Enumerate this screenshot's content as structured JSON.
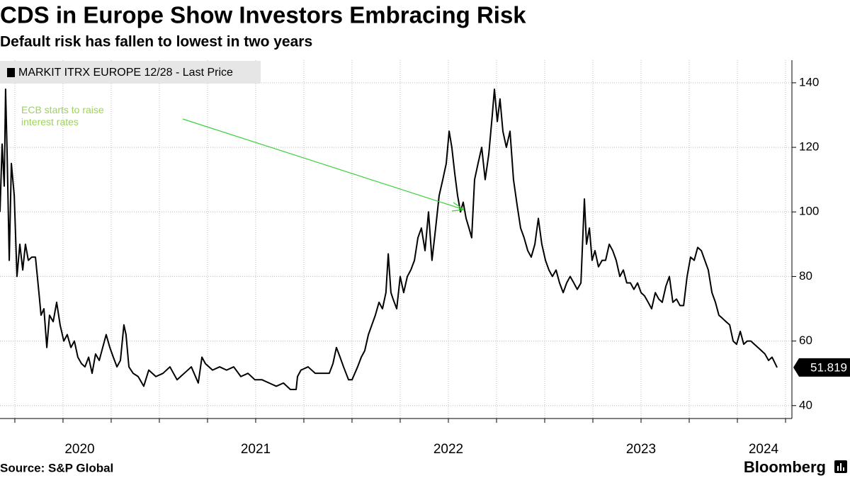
{
  "chart_data": {
    "type": "line",
    "title": "CDS in Europe Show Investors Embracing Risk",
    "subtitle": "Default risk has fallen to lowest in two years",
    "source": "Source: S&P Global",
    "brand": "Bloomberg",
    "annotation": "ECB starts to raise interest rates",
    "xlim": [
      2020.173,
      2024.272
    ],
    "xticks": [
      {
        "value": 2020,
        "label": "2020"
      },
      {
        "value": 2021,
        "label": "2021"
      },
      {
        "value": 2022,
        "label": "2022"
      },
      {
        "value": 2023,
        "label": "2023"
      },
      {
        "value": 2024,
        "label": "2024"
      }
    ],
    "xgrid": [
      2020.25,
      2020.5,
      2020.75,
      2021,
      2021.25,
      2021.5,
      2021.75,
      2022,
      2022.25,
      2022.5,
      2022.75,
      2023,
      2023.25,
      2023.5,
      2023.75,
      2024,
      2024.25
    ],
    "ylim": [
      36,
      147
    ],
    "yticks": [
      40,
      60,
      80,
      100,
      120,
      140
    ],
    "grid": true,
    "legend": "top-left",
    "x": [
      2020.173,
      2020.184,
      2020.195,
      2020.202,
      2020.21,
      2020.221,
      2020.232,
      2020.247,
      2020.261,
      2020.276,
      2020.291,
      2020.305,
      2020.32,
      2020.338,
      2020.357,
      2020.375,
      2020.386,
      2020.401,
      2020.416,
      2020.43,
      2020.449,
      2020.467,
      2020.485,
      2020.504,
      2020.522,
      2020.541,
      2020.559,
      2020.577,
      2020.596,
      2020.614,
      2020.633,
      2020.651,
      2020.669,
      2020.688,
      2020.706,
      2020.724,
      2020.743,
      2020.761,
      2020.78,
      2020.798,
      2020.816,
      2020.827,
      2020.842,
      2020.864,
      2020.89,
      2020.919,
      2020.945,
      2020.982,
      2021.019,
      2021.055,
      2021.092,
      2021.129,
      2021.166,
      2021.202,
      2021.221,
      2021.239,
      2021.276,
      2021.313,
      2021.349,
      2021.386,
      2021.423,
      2021.46,
      2021.496,
      2021.533,
      2021.57,
      2021.607,
      2021.644,
      2021.68,
      2021.71,
      2021.717,
      2021.735,
      2021.772,
      2021.809,
      2021.846,
      2021.882,
      2021.901,
      2021.919,
      2021.938,
      2021.956,
      2021.982,
      2022.0,
      2022.029,
      2022.048,
      2022.066,
      2022.085,
      2022.103,
      2022.121,
      2022.14,
      2022.158,
      2022.176,
      2022.188,
      2022.202,
      2022.213,
      2022.232,
      2022.25,
      2022.268,
      2022.287,
      2022.305,
      2022.324,
      2022.342,
      2022.36,
      2022.379,
      2022.397,
      2022.415,
      2022.434,
      2022.452,
      2022.471,
      2022.489,
      2022.504,
      2022.518,
      2022.533,
      2022.548,
      2022.563,
      2022.577,
      2022.592,
      2022.607,
      2022.621,
      2022.636,
      2022.654,
      2022.673,
      2022.691,
      2022.71,
      2022.728,
      2022.739,
      2022.754,
      2022.768,
      2022.783,
      2022.801,
      2022.82,
      2022.838,
      2022.857,
      2022.875,
      2022.893,
      2022.912,
      2022.93,
      2022.949,
      2022.967,
      2022.985,
      2023.004,
      2023.022,
      2023.04,
      2023.059,
      2023.077,
      2023.096,
      2023.114,
      2023.132,
      2023.151,
      2023.169,
      2023.188,
      2023.206,
      2023.217,
      2023.232,
      2023.246,
      2023.261,
      2023.279,
      2023.298,
      2023.316,
      2023.335,
      2023.353,
      2023.371,
      2023.39,
      2023.408,
      2023.426,
      2023.445,
      2023.463,
      2023.482,
      2023.5,
      2023.518,
      2023.537,
      2023.555,
      2023.574,
      2023.592,
      2023.61,
      2023.629,
      2023.647,
      2023.665,
      2023.684,
      2023.702,
      2023.721,
      2023.739,
      2023.757,
      2023.776,
      2023.794,
      2023.813,
      2023.831,
      2023.849,
      2023.868,
      2023.886,
      2023.904,
      2023.923,
      2023.941,
      2023.96,
      2023.978,
      2023.996,
      2024.015,
      2024.033,
      2024.051,
      2024.07,
      2024.088,
      2024.107,
      2024.125,
      2024.143,
      2024.162,
      2024.18,
      2024.206
    ],
    "series": [
      {
        "name": "MARKIT ITRX EUROPE 12/28 - Last Price",
        "color": "#000000",
        "values": [
          100,
          121,
          108,
          138,
          118,
          85,
          115,
          105,
          80,
          90,
          82,
          90,
          85,
          86,
          86,
          75,
          68,
          70,
          58,
          68,
          66,
          72,
          65,
          60,
          62,
          58,
          60,
          55,
          53,
          52,
          55,
          50,
          56,
          54,
          58,
          62,
          58,
          55,
          52,
          54,
          65,
          62,
          52,
          50,
          49,
          46,
          51,
          49,
          50,
          52,
          48,
          50,
          52,
          47,
          55,
          53,
          51,
          52,
          51,
          52,
          49,
          50,
          48,
          48,
          47,
          46,
          47,
          45,
          45,
          49,
          51,
          52,
          50,
          50,
          50,
          53,
          58,
          55,
          52,
          48,
          48,
          52,
          55,
          57,
          62,
          65,
          68,
          72,
          70,
          75,
          87,
          75,
          73,
          70,
          80,
          75,
          80,
          82,
          85,
          92,
          95,
          88,
          100,
          85,
          95,
          105,
          110,
          115,
          125,
          120,
          112,
          105,
          100,
          103,
          98,
          95,
          92,
          110,
          115,
          120,
          110,
          118,
          130,
          138,
          128,
          135,
          125,
          120,
          125,
          110,
          102,
          95,
          92,
          88,
          86,
          90,
          98,
          90,
          85,
          82,
          80,
          82,
          78,
          75,
          78,
          80,
          78,
          76,
          78,
          104,
          90,
          95,
          85,
          88,
          83,
          85,
          85,
          90,
          88,
          85,
          80,
          82,
          78,
          78,
          76,
          78,
          75,
          74,
          72,
          70,
          75,
          73,
          72,
          77,
          80,
          72,
          73,
          71,
          71,
          80,
          86,
          85,
          89,
          88,
          85,
          82,
          75,
          72,
          68,
          67,
          66,
          65,
          60,
          59,
          63,
          59,
          60,
          60,
          59,
          58,
          57,
          56,
          54,
          55,
          51.819
        ]
      }
    ]
  }
}
